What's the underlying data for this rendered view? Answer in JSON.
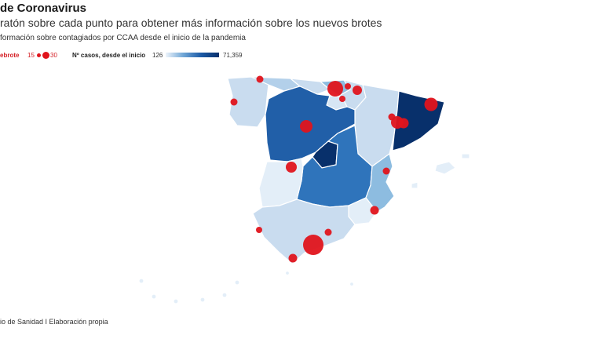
{
  "header": {
    "title": "de Coronavirus",
    "subtitle": "ratón sobre cada punto para obtener más información sobre los nuevos brotes",
    "info": "formación sobre contagiados por CCAA desde el inicio de la pandemia"
  },
  "legend": {
    "outbreak_label": "ebrote",
    "outbreak_min": "15",
    "outbreak_max": "30",
    "cases_label": "Nº casos, desde el inicio",
    "cases_min": "126",
    "cases_max": "71,359",
    "outbreak_color": "#e0141c",
    "scale_colors": [
      "#eef4fb",
      "#6fa6d6",
      "#1c5aa6",
      "#08306b"
    ]
  },
  "source": "io de Sanidad I Elaboración propia",
  "map": {
    "colors": {
      "very_light": "#e3eef8",
      "light": "#c9dcef",
      "light_mid": "#b3d0ea",
      "mid": "#8dbce0",
      "mid_dark": "#2f74bb",
      "dark": "#215fa8",
      "darkest": "#08306b",
      "outbreak": "#e0141c"
    }
  }
}
